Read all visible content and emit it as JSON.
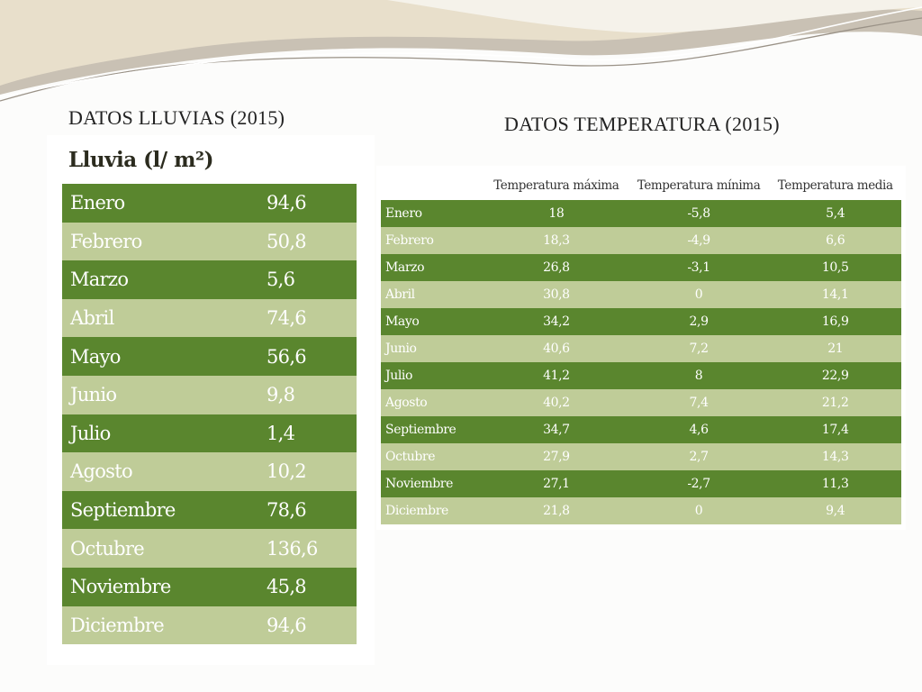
{
  "slide": {
    "title_rain": "DATOS LLUVIAS (2015)",
    "title_temp": "DATOS TEMPERATURA (2015)"
  },
  "rain_table": {
    "header": "Lluvia (l/ m²)",
    "rows": [
      {
        "month": "Enero",
        "value": "94,6"
      },
      {
        "month": "Febrero",
        "value": "50,8"
      },
      {
        "month": "Marzo",
        "value": "5,6"
      },
      {
        "month": "Abril",
        "value": "74,6"
      },
      {
        "month": "Mayo",
        "value": "56,6"
      },
      {
        "month": "Junio",
        "value": "9,8"
      },
      {
        "month": "Julio",
        "value": "1,4"
      },
      {
        "month": "Agosto",
        "value": "10,2"
      },
      {
        "month": "Septiembre",
        "value": "78,6"
      },
      {
        "month": "Octubre",
        "value": "136,6"
      },
      {
        "month": "Noviembre",
        "value": "45,8"
      },
      {
        "month": "Diciembre",
        "value": "94,6"
      }
    ]
  },
  "temp_table": {
    "columns": [
      "Temperatura máxima",
      "Temperatura mínima",
      "Temperatura media"
    ],
    "rows": [
      {
        "month": "Enero",
        "max": "18",
        "min": "-5,8",
        "avg": "5,4"
      },
      {
        "month": "Febrero",
        "max": "18,3",
        "min": "-4,9",
        "avg": "6,6"
      },
      {
        "month": "Marzo",
        "max": "26,8",
        "min": "-3,1",
        "avg": "10,5"
      },
      {
        "month": "Abril",
        "max": "30,8",
        "min": "0",
        "avg": "14,1"
      },
      {
        "month": "Mayo",
        "max": "34,2",
        "min": "2,9",
        "avg": "16,9"
      },
      {
        "month": "Junio",
        "max": "40,6",
        "min": "7,2",
        "avg": "21"
      },
      {
        "month": "Julio",
        "max": "41,2",
        "min": "8",
        "avg": "22,9"
      },
      {
        "month": "Agosto",
        "max": "40,2",
        "min": "7,4",
        "avg": "21,2"
      },
      {
        "month": "Septiembre",
        "max": "34,7",
        "min": "4,6",
        "avg": "17,4"
      },
      {
        "month": "Octubre",
        "max": "27,9",
        "min": "2,7",
        "avg": "14,3"
      },
      {
        "month": "Noviembre",
        "max": "27,1",
        "min": "-2,7",
        "avg": "11,3"
      },
      {
        "month": "Diciembre",
        "max": "21,8",
        "min": "0",
        "avg": "9,4"
      }
    ]
  },
  "colors": {
    "row_dark": "#5a862e",
    "row_light": "#bfcc98",
    "banner_gray": "#c7bfb2",
    "banner_beige": "#e7ddc8"
  }
}
